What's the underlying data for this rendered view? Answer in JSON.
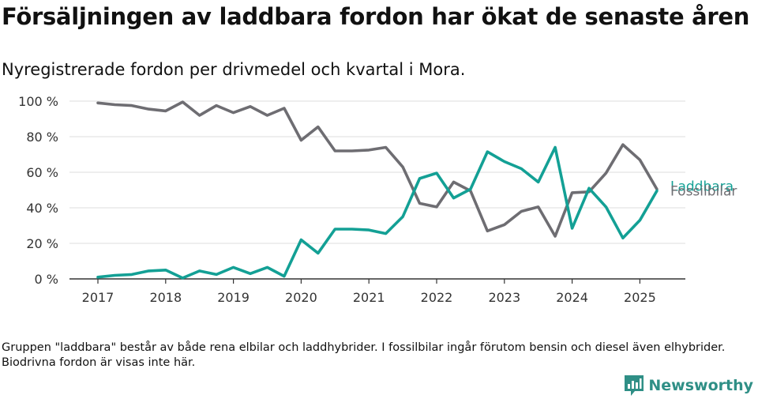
{
  "title": "Försäljningen av laddbara fordon har ökat de senaste åren",
  "subtitle": "Nyregistrerade fordon per drivmedel och kvartal i Mora.",
  "footnote": "Gruppen \"laddbara\" består av både rena elbilar och laddhybrider. I fossilbilar ingår förutom bensin och diesel även elhybrider. Biodrivna fordon är visas inte här.",
  "brand": "Newsworthy",
  "colors": {
    "fossil": "#6e6d72",
    "laddbara": "#13a095",
    "grid": "#dddddd",
    "axis": "#333333",
    "brand": "#2f8f86"
  },
  "chart_data": {
    "type": "line",
    "x_start": "2017-Q1",
    "x_ticks": [
      "2017",
      "2018",
      "2019",
      "2020",
      "2021",
      "2022",
      "2023",
      "2024",
      "2025"
    ],
    "y_ticks": [
      "0 %",
      "20 %",
      "40 %",
      "60 %",
      "80 %",
      "100 %"
    ],
    "ylim": [
      0,
      100
    ],
    "x": [
      "2017 Q1",
      "2017 Q2",
      "2017 Q3",
      "2017 Q4",
      "2018 Q1",
      "2018 Q2",
      "2018 Q3",
      "2018 Q4",
      "2019 Q1",
      "2019 Q2",
      "2019 Q3",
      "2019 Q4",
      "2020 Q1",
      "2020 Q2",
      "2020 Q3",
      "2020 Q4",
      "2021 Q1",
      "2021 Q2",
      "2021 Q3",
      "2021 Q4",
      "2022 Q1",
      "2022 Q2",
      "2022 Q3",
      "2022 Q4",
      "2023 Q1",
      "2023 Q2",
      "2023 Q3",
      "2023 Q4",
      "2024 Q1",
      "2024 Q2",
      "2024 Q3",
      "2024 Q4",
      "2025 Q1",
      "2025 Q2"
    ],
    "series": [
      {
        "name": "Fossilbilar",
        "color": "#6e6d72",
        "values": [
          99,
          98,
          97.5,
          95.5,
          94.5,
          99.5,
          92,
          97.5,
          93.5,
          97,
          92,
          96,
          78,
          85.5,
          72,
          72,
          72.5,
          74,
          63,
          42.5,
          40.5,
          54.5,
          49.5,
          27,
          30.5,
          38,
          40.5,
          24,
          48.5,
          49,
          59.5,
          75.5,
          67,
          50.5
        ]
      },
      {
        "name": "Laddbara",
        "color": "#13a095",
        "values": [
          1,
          2,
          2.5,
          4.5,
          5,
          0.5,
          4.5,
          2.5,
          6.5,
          3,
          6.5,
          1.5,
          22,
          14.5,
          28,
          28,
          27.5,
          25.5,
          35,
          56.5,
          59.5,
          45.5,
          50.5,
          71.5,
          66,
          62,
          54.5,
          74,
          28.5,
          51,
          40.5,
          23,
          33,
          49.5
        ]
      }
    ]
  }
}
